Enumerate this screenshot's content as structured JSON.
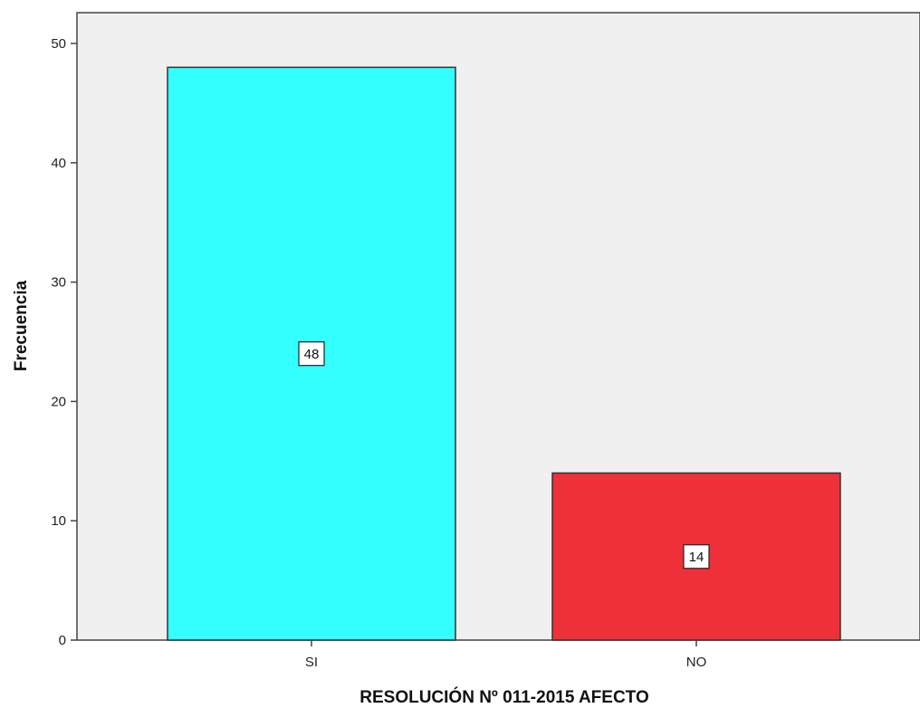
{
  "chart_data": {
    "type": "bar",
    "categories": [
      "SI",
      "NO"
    ],
    "values": [
      48,
      14
    ],
    "data_labels": [
      "48",
      "14"
    ],
    "colors": [
      "#33ffff",
      "#ee3039"
    ],
    "xlabel": "RESOLUCIÓN Nº 011-2015 AFECTO",
    "ylabel": "Frecuencia",
    "ylim": [
      0,
      52
    ],
    "yticks": [
      0,
      10,
      20,
      30,
      40,
      50
    ],
    "ytick_labels": [
      "0",
      "10",
      "20",
      "30",
      "40",
      "50"
    ],
    "grid": false,
    "plot_background": "#f0f0f0"
  }
}
